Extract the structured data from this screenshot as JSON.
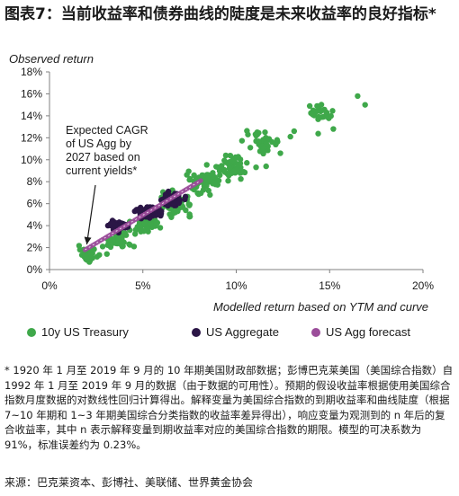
{
  "title": "图表7：当前收益率和债券曲线的陡度是未来收益率的良好指标*",
  "chart_data": {
    "type": "scatter",
    "ylabel": "Observed return",
    "xlabel": "Modelled return based on YTM and curve",
    "xlim": [
      0,
      20
    ],
    "ylim": [
      0,
      18
    ],
    "x_ticks": [
      "0%",
      "5%",
      "10%",
      "15%",
      "20%"
    ],
    "y_ticks": [
      "0%",
      "2%",
      "4%",
      "6%",
      "8%",
      "10%",
      "12%",
      "14%",
      "16%",
      "18%"
    ],
    "grid": false,
    "legend_position": "bottom",
    "annotation": {
      "lines": [
        "Expected CAGR",
        "of US Agg by",
        "2027 based on",
        "current yields*"
      ],
      "x": 1.9,
      "y": 1.8
    },
    "series": [
      {
        "name": "10y US Treasury",
        "color": "#3fa84a",
        "clusters": [
          {
            "cx": 2.1,
            "cy": 1.3,
            "sx": 0.5,
            "sy": 0.6,
            "n": 40
          },
          {
            "cx": 3.6,
            "cy": 2.7,
            "sx": 0.8,
            "sy": 0.8,
            "n": 60
          },
          {
            "cx": 5.2,
            "cy": 4.2,
            "sx": 0.8,
            "sy": 0.9,
            "n": 60
          },
          {
            "cx": 6.8,
            "cy": 6.0,
            "sx": 0.8,
            "sy": 1.0,
            "n": 60
          },
          {
            "cx": 8.3,
            "cy": 8.0,
            "sx": 0.9,
            "sy": 1.0,
            "n": 60
          },
          {
            "cx": 9.8,
            "cy": 9.4,
            "sx": 0.8,
            "sy": 1.0,
            "n": 60
          },
          {
            "cx": 11.5,
            "cy": 11.5,
            "sx": 1.0,
            "sy": 1.0,
            "n": 40
          },
          {
            "cx": 14.5,
            "cy": 14.2,
            "sx": 1.0,
            "sy": 0.9,
            "n": 25
          }
        ],
        "points": [
          [
            16.5,
            15.8
          ],
          [
            16.9,
            15.0
          ],
          [
            15.2,
            12.8
          ],
          [
            13.1,
            12.6
          ],
          [
            12.9,
            12.1
          ],
          [
            11.6,
            9.4
          ],
          [
            10.4,
            8.9
          ]
        ]
      },
      {
        "name": "US Aggregate",
        "color": "#2b1646",
        "clusters": [
          {
            "cx": 3.7,
            "cy": 4.0,
            "sx": 0.5,
            "sy": 0.4,
            "n": 60
          },
          {
            "cx": 5.3,
            "cy": 5.3,
            "sx": 0.6,
            "sy": 0.5,
            "n": 110
          },
          {
            "cx": 6.6,
            "cy": 6.4,
            "sx": 0.5,
            "sy": 0.5,
            "n": 80
          }
        ],
        "points": []
      },
      {
        "name": "US Agg forecast",
        "color": "#9b4d9a",
        "line": {
          "x": [
            1.9,
            8.1
          ],
          "y": [
            1.8,
            8.1
          ]
        }
      }
    ],
    "random_seed": 7
  },
  "note": "* 1920 年 1 月至 2019 年 9 月的 10 年期美国财政部数据；彭博巴克莱美国（美国综合指数）自 1992 年 1 月至 2019 年 9 月的数据（由于数据的可用性）。预期的假设收益率根据使用美国综合指数月度数据的对数线性回归计算得出。解释变量为美国综合指数的到期收益率和曲线陡度（根据 7~10 年期和 1~3 年期美国综合分类指数的收益率差异得出），响应变量为观测到的 n 年后的复合收益率，其中 n 表示解释变量到期收益率对应的美国综合指数的期限。模型的可决系数为 91%，标准误差约为 0.23%。",
  "source": "来源：巴克莱资本、彭博社、美联储、世界黄金协会"
}
